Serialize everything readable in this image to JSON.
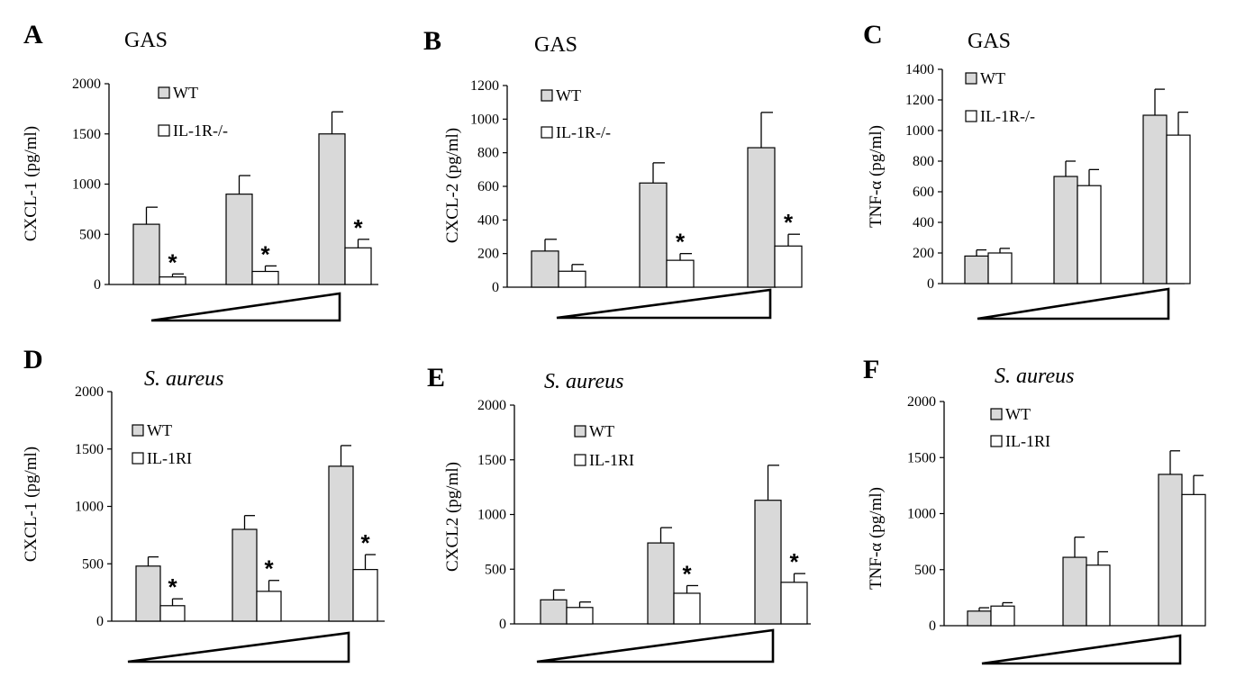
{
  "colors": {
    "wt": "#d9d9d9",
    "ko": "#ffffff",
    "stroke": "#000000"
  },
  "chart_data": [
    {
      "panel": "A",
      "type": "bar",
      "title": "GAS",
      "ylabel": "CXCL-1  (pg/ml)",
      "ylim": [
        0,
        2000
      ],
      "yticks": [
        0,
        500,
        1000,
        1500,
        2000
      ],
      "legend": [
        "WT",
        "IL-1R-/-"
      ],
      "series": [
        {
          "name": "WT",
          "values": [
            600,
            900,
            1500
          ],
          "errors": [
            170,
            185,
            220
          ]
        },
        {
          "name": "IL-1R-/-",
          "values": [
            75,
            130,
            365
          ],
          "errors": [
            30,
            55,
            85
          ]
        }
      ],
      "significant": [
        true,
        true,
        true
      ]
    },
    {
      "panel": "B",
      "type": "bar",
      "title": "GAS",
      "ylabel": "CXCL-2 (pg/ml)",
      "ylim": [
        0,
        1200
      ],
      "yticks": [
        0,
        200,
        400,
        600,
        800,
        1000,
        1200
      ],
      "legend": [
        "WT",
        "IL-1R-/-"
      ],
      "series": [
        {
          "name": "WT",
          "values": [
            215,
            620,
            830
          ],
          "errors": [
            70,
            120,
            210
          ]
        },
        {
          "name": "IL-1R-/-",
          "values": [
            95,
            160,
            245
          ],
          "errors": [
            40,
            40,
            70
          ]
        }
      ],
      "significant": [
        false,
        true,
        true
      ]
    },
    {
      "panel": "C",
      "type": "bar",
      "title": "GAS",
      "ylabel": "TNF-α (pg/ml)",
      "ylim": [
        0,
        1400
      ],
      "yticks": [
        0,
        200,
        400,
        600,
        800,
        1000,
        1200,
        1400
      ],
      "legend": [
        "WT",
        "IL-1R-/-"
      ],
      "series": [
        {
          "name": "WT",
          "values": [
            180,
            700,
            1100
          ],
          "errors": [
            40,
            100,
            170
          ]
        },
        {
          "name": "IL-1R-/-",
          "values": [
            200,
            640,
            970
          ],
          "errors": [
            30,
            105,
            150
          ]
        }
      ],
      "significant": [
        false,
        false,
        false
      ]
    },
    {
      "panel": "D",
      "type": "bar",
      "title": "S. aureus",
      "ylabel": "CXCL-1  (pg/ml)",
      "ylim": [
        0,
        2000
      ],
      "yticks": [
        0,
        500,
        1000,
        1500,
        2000
      ],
      "legend": [
        "WT",
        "IL-1RI"
      ],
      "series": [
        {
          "name": "WT",
          "values": [
            480,
            800,
            1350
          ],
          "errors": [
            80,
            120,
            180
          ]
        },
        {
          "name": "IL-1RI",
          "values": [
            135,
            260,
            450
          ],
          "errors": [
            60,
            95,
            130
          ]
        }
      ],
      "significant": [
        true,
        true,
        true
      ]
    },
    {
      "panel": "E",
      "type": "bar",
      "title": "S. aureus",
      "ylabel": "CXCL2 (pg/ml)",
      "ylim": [
        0,
        2000
      ],
      "yticks": [
        0,
        500,
        1000,
        1500,
        2000
      ],
      "legend": [
        "WT",
        "IL-1RI"
      ],
      "series": [
        {
          "name": "WT",
          "values": [
            220,
            740,
            1130
          ],
          "errors": [
            90,
            140,
            320
          ]
        },
        {
          "name": "IL-1RI",
          "values": [
            150,
            280,
            380
          ],
          "errors": [
            50,
            70,
            80
          ]
        }
      ],
      "significant": [
        false,
        true,
        true
      ]
    },
    {
      "panel": "F",
      "type": "bar",
      "title": "S. aureus",
      "ylabel": "TNF-α (pg/ml)",
      "ylim": [
        0,
        2000
      ],
      "yticks": [
        0,
        500,
        1000,
        1500,
        2000
      ],
      "legend": [
        "WT",
        "IL-1RI"
      ],
      "series": [
        {
          "name": "WT",
          "values": [
            130,
            610,
            1350
          ],
          "errors": [
            30,
            180,
            210
          ]
        },
        {
          "name": "IL-1RI",
          "values": [
            175,
            540,
            1170
          ],
          "errors": [
            30,
            120,
            170
          ]
        }
      ],
      "significant": [
        false,
        false,
        false
      ]
    }
  ]
}
